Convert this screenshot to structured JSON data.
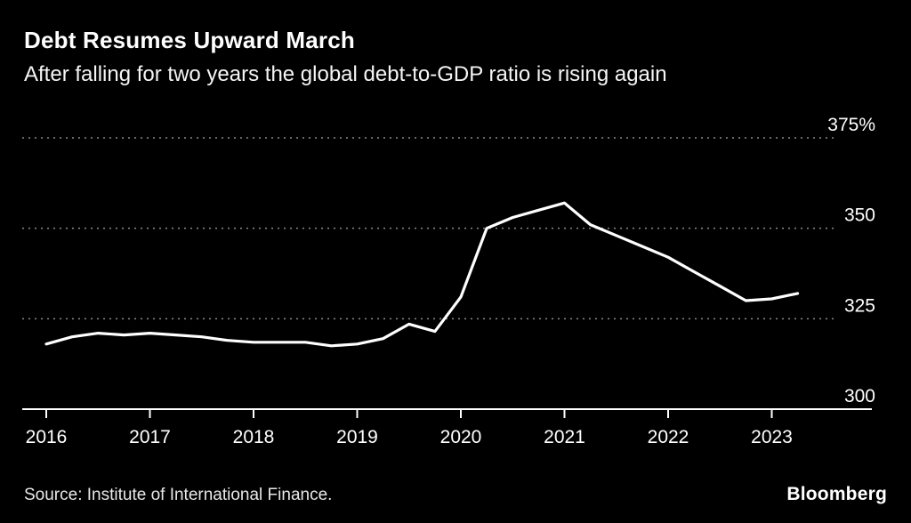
{
  "header": {
    "title": "Debt Resumes Upward March",
    "subtitle": "After falling for two years the global debt-to-GDP ratio is rising again"
  },
  "footer": {
    "source": "Source: Institute of International Finance.",
    "brand": "Bloomberg"
  },
  "chart_data": {
    "type": "line",
    "title": "Debt Resumes Upward March",
    "subtitle": "After falling for two years the global debt-to-GDP ratio is rising again",
    "series_name": "Global debt-to-GDP ratio (%)",
    "x": [
      2016,
      2016.25,
      2016.5,
      2016.75,
      2017,
      2017.25,
      2017.5,
      2017.75,
      2018,
      2018.25,
      2018.5,
      2018.75,
      2019,
      2019.25,
      2019.5,
      2019.75,
      2020,
      2020.25,
      2020.5,
      2020.75,
      2021,
      2021.25,
      2021.5,
      2021.75,
      2022,
      2022.25,
      2022.5,
      2022.75,
      2023,
      2023.25
    ],
    "values": [
      318,
      320,
      321,
      320.5,
      321,
      320.5,
      320,
      319,
      318.5,
      318.5,
      318.5,
      317.5,
      318,
      319.5,
      323.5,
      321.5,
      331,
      350,
      353,
      355,
      357,
      351,
      348,
      345,
      342,
      338,
      334,
      330,
      330.5,
      332
    ],
    "ylim": [
      300,
      375
    ],
    "y_ticks": [
      {
        "value": 375,
        "label": "375%"
      },
      {
        "value": 350,
        "label": "350"
      },
      {
        "value": 325,
        "label": "325"
      },
      {
        "value": 300,
        "label": "300"
      }
    ],
    "x_ticks": [
      2016,
      2017,
      2018,
      2019,
      2020,
      2021,
      2022,
      2023
    ],
    "line_color": "#ffffff",
    "grid_color": "#8a8a8a",
    "axis_color": "#ffffff",
    "background": "#000000",
    "grid": "dotted horizontal gridlines, solid baseline",
    "legend": "none"
  }
}
